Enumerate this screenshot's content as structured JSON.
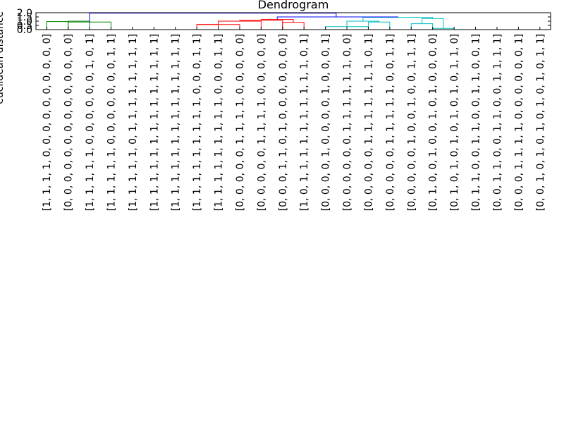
{
  "chart_data": {
    "type": "dendrogram",
    "title": "Dendrogram",
    "ylabel": "euclidean distance",
    "ylim": [
      0,
      2.0
    ],
    "yticks": [
      "0.0",
      "0.5",
      "1.0",
      "1.5",
      "2.0"
    ],
    "leaves": [
      "[1, 1, 1, 1, 0, 0, 0, 0, 0, 0, 0, 0, 0, 0]",
      "[0, 0, 0, 0, 0, 0, 0, 0, 0, 0, 0, 0, 0, 0]",
      "[1, 1, 1, 1, 1, 0, 0, 0, 0, 0, 0, 1, 0, 1]",
      "[1, 1, 1, 1, 1, 0, 0, 0, 0, 0, 0, 0, 1, 1]",
      "[1, 1, 1, 1, 1, 0, 1, 1, 1, 1, 1, 1, 1, 1]",
      "[1, 1, 1, 1, 1, 1, 1, 1, 1, 1, 1, 1, 1, 1]",
      "[1, 1, 1, 1, 1, 1, 1, 1, 1, 1, 1, 1, 1, 1]",
      "[1, 1, 1, 1, 1, 1, 1, 1, 1, 0, 0, 0, 1, 1]",
      "[1, 1, 1, 1, 1, 1, 1, 1, 1, 0, 0, 0, 1, 1]",
      "[0, 0, 0, 0, 0, 1, 1, 1, 1, 0, 0, 0, 0, 0]",
      "[0, 0, 0, 0, 0, 1, 1, 1, 1, 0, 0, 0, 0, 0]",
      "[0, 0, 0, 1, 1, 0, 1, 0, 0, 0, 0, 0, 0, 0]",
      "[1, 0, 1, 1, 1, 1, 1, 1, 1, 1, 1, 1, 0, 1]",
      "[0, 0, 0, 0, 1, 0, 0, 0, 0, 1, 0, 0, 0, 1]",
      "[0, 0, 0, 0, 0, 0, 1, 1, 1, 1, 1, 1, 0, 0]",
      "[0, 0, 0, 0, 0, 1, 1, 1, 1, 1, 1, 1, 0, 1]",
      "[0, 0, 0, 0, 0, 1, 1, 1, 1, 1, 0, 0, 1, 1]",
      "[0, 0, 0, 0, 0, 1, 0, 0, 1, 0, 0, 1, 1, 1]",
      "[0, 1, 0, 0, 1, 0, 0, 1, 0, 1, 0, 0, 0, 0]",
      "[0, 1, 0, 1, 0, 1, 0, 1, 0, 1, 0, 1, 1, 0]",
      "[0, 1, 1, 0, 0, 1, 1, 0, 0, 1, 1, 0, 0, 1]",
      "[0, 0, 1, 1, 0, 0, 1, 1, 0, 0, 1, 1, 1, 1]",
      "[0, 0, 0, 1, 1, 1, 1, 0, 0, 0, 0, 0, 0, 1]",
      "[0, 0, 1, 0, 1, 0, 1, 0, 1, 0, 1, 0, 1, 1]"
    ],
    "links": [
      {
        "color": "#008000",
        "x_left": 0,
        "x_right": 1,
        "height": 0.95,
        "h_left": 0.0,
        "h_right": 0.0
      },
      {
        "color": "#008000",
        "x_left": 1,
        "x_right": 2,
        "height": 1.0,
        "h_left": 0.0,
        "h_right": 0.0
      },
      {
        "color": "#008000",
        "x_left": 1,
        "x_right": 3,
        "height": 0.9,
        "h_left": 1.0,
        "h_right": 0.0
      },
      {
        "color": "#ff0000",
        "x_left": 7,
        "x_right": 8,
        "height": 0.6,
        "h_left": 0.0,
        "h_right": 0.0
      },
      {
        "color": "#ff0000",
        "x_left": 7,
        "x_right": 9,
        "height": 0.6,
        "h_left": 0.6,
        "h_right": 0.0
      },
      {
        "color": "#ff0000",
        "x_left": 8,
        "x_right": 10,
        "height": 1.0,
        "h_left": 0.6,
        "h_right": 0.0
      },
      {
        "color": "#ff0000",
        "x_left": 9,
        "x_right": 11,
        "height": 1.1,
        "h_left": 1.0,
        "h_right": 0.0
      },
      {
        "color": "#ff0000",
        "x_left": 11,
        "x_right": 12,
        "height": 0.85,
        "h_left": 0.0,
        "h_right": 0.0
      },
      {
        "color": "#ff0000",
        "x_left": 10,
        "x_right": 11.5,
        "height": 1.2,
        "h_left": 1.1,
        "h_right": 0.85
      },
      {
        "color": "#00bfbf",
        "x_left": 13,
        "x_right": 15,
        "height": 0.35,
        "h_left": 0.0,
        "h_right": 0.0
      },
      {
        "color": "#00bfbf",
        "x_left": 15,
        "x_right": 16,
        "height": 0.9,
        "h_left": 0.0,
        "h_right": 0.0
      },
      {
        "color": "#00bfbf",
        "x_left": 14,
        "x_right": 15.5,
        "height": 1.0,
        "h_left": 0.35,
        "h_right": 0.9
      },
      {
        "color": "#00bfbf",
        "x_left": 17,
        "x_right": 18,
        "height": 0.7,
        "h_left": 0.0,
        "h_right": 0.0
      },
      {
        "color": "#00bfbf",
        "x_left": 18,
        "x_right": 19,
        "height": 0.15,
        "h_left": 0.0,
        "h_right": 0.0
      },
      {
        "color": "#00bfbf",
        "x_left": 17.5,
        "x_right": 18.5,
        "height": 1.3,
        "h_left": 0.7,
        "h_right": 0.15
      },
      {
        "color": "#00bfbf",
        "x_left": 14.75,
        "x_right": 18,
        "height": 1.45,
        "h_left": 1.0,
        "h_right": 1.3
      },
      {
        "color": "#0000ff",
        "x_left": 10.75,
        "x_right": 16.375,
        "height": 1.5,
        "h_left": 1.2,
        "h_right": 1.45
      },
      {
        "color": "#0000ff",
        "x_left": 2,
        "x_right": 13.5,
        "height": 1.95,
        "h_left": 0.9,
        "h_right": 1.5
      }
    ]
  }
}
